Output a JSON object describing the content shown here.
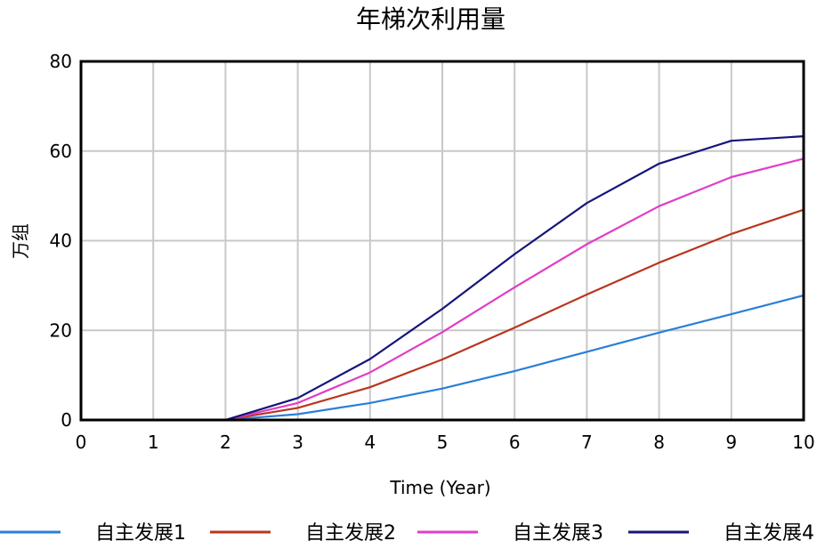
{
  "chart_data": {
    "type": "line",
    "title": "年梯次利用量",
    "xlabel": "Time (Year)",
    "ylabel": "万组",
    "xlim": [
      0,
      10
    ],
    "ylim": [
      0,
      80
    ],
    "x_ticks": [
      0,
      1,
      2,
      3,
      4,
      5,
      6,
      7,
      8,
      9,
      10
    ],
    "y_ticks": [
      0,
      20,
      40,
      60,
      80
    ],
    "grid": true,
    "legend_position": "bottom",
    "x": [
      0,
      1,
      2,
      3,
      4,
      5,
      6,
      7,
      8,
      9,
      10
    ],
    "series": [
      {
        "name": "自主发展1",
        "color": "#2a7fd8",
        "values": [
          0,
          0,
          0,
          1.3,
          3.8,
          7.0,
          10.9,
          15.2,
          19.5,
          23.6,
          27.8
        ]
      },
      {
        "name": "自主发展2",
        "color": "#b8361e",
        "values": [
          0,
          0,
          0,
          2.7,
          7.3,
          13.5,
          20.6,
          28.0,
          35.1,
          41.5,
          46.9
        ]
      },
      {
        "name": "自主发展3",
        "color": "#e03ec8",
        "values": [
          0,
          0,
          0,
          3.8,
          10.6,
          19.6,
          29.6,
          39.2,
          47.7,
          54.2,
          58.3
        ]
      },
      {
        "name": "自主发展4",
        "color": "#15157a",
        "values": [
          0,
          0,
          0,
          4.9,
          13.6,
          24.8,
          37.0,
          48.4,
          57.2,
          62.3,
          63.3
        ]
      }
    ]
  }
}
